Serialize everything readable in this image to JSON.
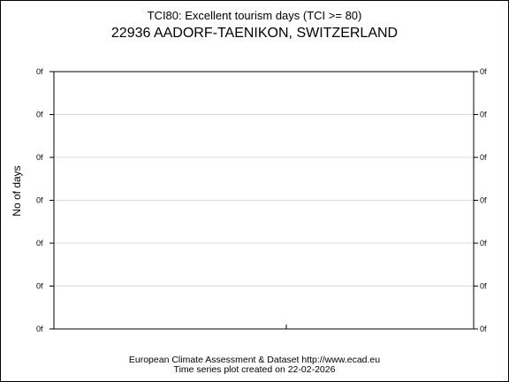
{
  "chart_data": {
    "type": "line",
    "title": "TCI80: Excellent tourism days (TCI >= 80)",
    "subtitle": "22936 AADORF-TAENIKON, SWITZERLAND",
    "ylabel": "No of days",
    "xlabel": "",
    "y_tick_labels": [
      "0f",
      "0f",
      "0f",
      "0f",
      "0f",
      "0f",
      "0f"
    ],
    "grid": true,
    "series": []
  },
  "footer": {
    "line1": "European Climate Assessment & Dataset  http://www.ecad.eu",
    "line2": "Time series plot created on 22-02-2026"
  }
}
